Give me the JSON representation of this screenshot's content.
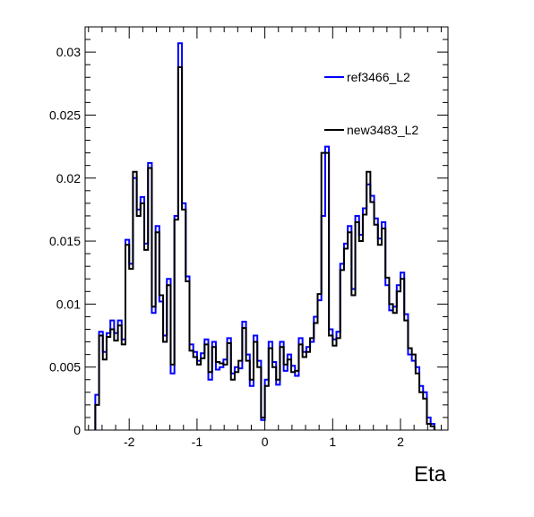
{
  "chart_data": {
    "type": "step",
    "title": "",
    "xlabel": "Eta",
    "ylabel": "",
    "xlim": [
      -2.65,
      2.7
    ],
    "ylim": [
      0,
      0.032
    ],
    "x_ticks": [
      -2,
      -1,
      0,
      1,
      2
    ],
    "x_tick_labels": [
      "-2",
      "-1",
      "0",
      "1",
      "2"
    ],
    "y_ticks": [
      0,
      0.005,
      0.01,
      0.015,
      0.02,
      0.025,
      0.03
    ],
    "y_tick_labels": [
      "0",
      "0.005",
      "0.01",
      "0.015",
      "0.02",
      "0.025",
      "0.03"
    ],
    "grid": false,
    "legend_position": "top-right",
    "bin_edges": [
      -2.5,
      2.5
    ],
    "series": [
      {
        "name": "ref3466_L2",
        "color": "#0000ff",
        "values": [
          0.0028,
          0.0078,
          0.0062,
          0.0077,
          0.0087,
          0.0077,
          0.0087,
          0.0072,
          0.0151,
          0.0132,
          0.02,
          0.0175,
          0.0185,
          0.0148,
          0.0212,
          0.0093,
          0.0162,
          0.0102,
          0.0075,
          0.012,
          0.0045,
          0.017,
          0.0307,
          0.018,
          0.0122,
          0.0068,
          0.0062,
          0.0055,
          0.0061,
          0.0072,
          0.004,
          0.007,
          0.0048,
          0.005,
          0.0056,
          0.0073,
          0.0045,
          0.005,
          0.0049,
          0.0086,
          0.006,
          0.0035,
          0.0075,
          0.0055,
          0.0008,
          0.004,
          0.007,
          0.0054,
          0.0036,
          0.007,
          0.0047,
          0.006,
          0.0051,
          0.0043,
          0.0073,
          0.0062,
          0.0066,
          0.007,
          0.009,
          0.0103,
          0.017,
          0.0225,
          0.008,
          0.0072,
          0.0078,
          0.0132,
          0.0148,
          0.0162,
          0.0112,
          0.017,
          0.0155,
          0.0176,
          0.0195,
          0.0186,
          0.0168,
          0.0152,
          0.0165,
          0.0115,
          0.0095,
          0.0098,
          0.0115,
          0.0125,
          0.0092,
          0.006,
          0.0055,
          0.005,
          0.0035,
          0.003,
          0.001,
          0.0005
        ]
      },
      {
        "name": "new3483_L2",
        "color": "#000000",
        "values": [
          0.002,
          0.0075,
          0.0056,
          0.0074,
          0.008,
          0.0071,
          0.0083,
          0.0068,
          0.0147,
          0.0128,
          0.0205,
          0.017,
          0.018,
          0.0143,
          0.0208,
          0.0098,
          0.0157,
          0.0107,
          0.007,
          0.0115,
          0.0052,
          0.0167,
          0.0288,
          0.0175,
          0.0118,
          0.0063,
          0.0058,
          0.0052,
          0.0057,
          0.0068,
          0.0046,
          0.0066,
          0.0054,
          0.0053,
          0.0052,
          0.0069,
          0.004,
          0.0046,
          0.0055,
          0.0081,
          0.0055,
          0.004,
          0.007,
          0.005,
          0.001,
          0.0035,
          0.0065,
          0.005,
          0.004,
          0.0066,
          0.0052,
          0.0056,
          0.0046,
          0.0047,
          0.0068,
          0.0058,
          0.0062,
          0.0073,
          0.0085,
          0.0108,
          0.022,
          0.022,
          0.0075,
          0.0067,
          0.0073,
          0.0127,
          0.0144,
          0.0157,
          0.0107,
          0.0165,
          0.015,
          0.0171,
          0.0205,
          0.0181,
          0.0163,
          0.0147,
          0.016,
          0.0121,
          0.01,
          0.0093,
          0.011,
          0.012,
          0.0087,
          0.0065,
          0.006,
          0.0045,
          0.003,
          0.0025,
          0.0005,
          0.0003
        ]
      }
    ]
  }
}
